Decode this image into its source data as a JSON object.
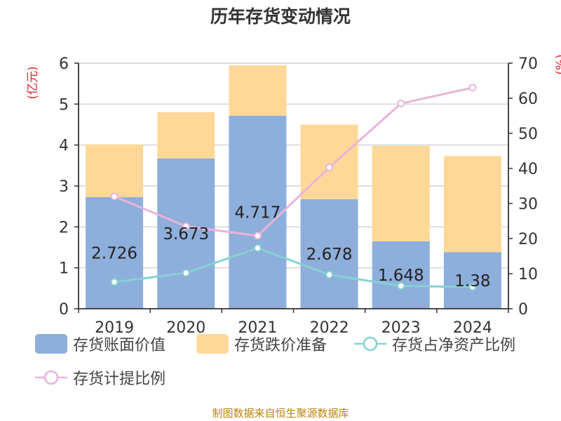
{
  "title": "历年存货变动情况",
  "source": "制图数据来自恒生聚源数据库",
  "chart_data": {
    "type": "bar",
    "stacked": true,
    "categories": [
      "2019",
      "2020",
      "2021",
      "2022",
      "2023",
      "2024"
    ],
    "y_left": {
      "label": "(亿元)",
      "ylim": [
        0,
        6
      ],
      "ticks": [
        0,
        1,
        2,
        3,
        4,
        5,
        6
      ]
    },
    "y_right": {
      "label": "(%)",
      "ylim": [
        0,
        70
      ],
      "ticks": [
        0,
        10,
        20,
        30,
        40,
        50,
        60,
        70
      ]
    },
    "grid": true,
    "legend_position": "bottom",
    "series": [
      {
        "name": "存货账面价值",
        "type": "bar",
        "axis": "left",
        "color": "#8eaedb",
        "values": [
          2.726,
          3.673,
          4.717,
          2.678,
          1.648,
          1.38
        ],
        "labels": [
          "2.726",
          "3.673",
          "4.717",
          "2.678",
          "1.648",
          "1.38"
        ]
      },
      {
        "name": "存货跌价准备",
        "type": "bar",
        "axis": "left",
        "color": "#ffd898",
        "values": [
          1.29,
          1.13,
          1.23,
          1.82,
          2.33,
          2.35
        ]
      },
      {
        "name": "存货占净资产比例",
        "type": "line",
        "axis": "right",
        "color": "#85d2d2",
        "values": [
          7.6,
          10.2,
          17.3,
          9.7,
          6.5,
          6.2
        ]
      },
      {
        "name": "存货计提比例",
        "type": "line",
        "axis": "right",
        "color": "#e8b4da",
        "values": [
          32,
          23.5,
          20.8,
          40.3,
          58.5,
          63
        ]
      }
    ]
  }
}
